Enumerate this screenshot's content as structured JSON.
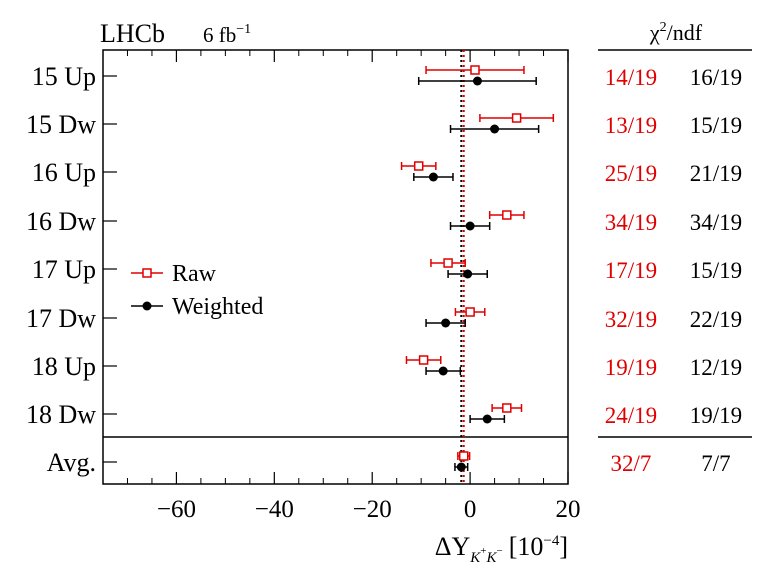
{
  "chart_data": {
    "type": "scatter",
    "subtype": "horizontal error-bar comparison",
    "experiment_label": "LHCb",
    "luminosity": {
      "value": "6 fb",
      "exponent": "−1"
    },
    "xlabel": {
      "prefix": "ΔY",
      "sub1": "K",
      "sup1": "+",
      "sub2": "K",
      "sup2": "−",
      "unit": "[10",
      "unit_exp": "−4",
      "unit_close": "]"
    },
    "xlim": [
      -75,
      20
    ],
    "xticks": [
      -60,
      -40,
      -20,
      0,
      20
    ],
    "xtick_labels": [
      "−60",
      "−40",
      "−20",
      "0",
      "20"
    ],
    "chi2_header": {
      "chi": "χ",
      "sup": "2",
      "rest": "/ndf"
    },
    "reference_lines": {
      "raw": -1.3,
      "weighted": -1.8
    },
    "legend": [
      {
        "name": "Raw",
        "color": "#e00000",
        "marker": "open-square"
      },
      {
        "name": "Weighted",
        "color": "#000000",
        "marker": "filled-circle"
      }
    ],
    "categories": [
      "15 Up",
      "15 Dw",
      "16 Up",
      "16 Dw",
      "17 Up",
      "17 Dw",
      "18 Up",
      "18 Dw",
      "Avg."
    ],
    "series": [
      {
        "name": "Raw",
        "color": "#e00000",
        "values": [
          1.0,
          9.5,
          -10.5,
          7.5,
          -4.5,
          0.0,
          -9.5,
          7.5,
          -1.3
        ],
        "errors": [
          10.0,
          7.5,
          3.5,
          3.5,
          3.5,
          3.0,
          3.5,
          3.0,
          1.2
        ],
        "chi2ndf": [
          "14/19",
          "13/19",
          "25/19",
          "34/19",
          "17/19",
          "32/19",
          "19/19",
          "24/19",
          "32/7"
        ]
      },
      {
        "name": "Weighted",
        "color": "#000000",
        "values": [
          1.5,
          5.0,
          -7.5,
          0.0,
          -0.5,
          -5.0,
          -5.5,
          3.5,
          -1.8
        ],
        "errors": [
          12.0,
          9.0,
          4.0,
          4.0,
          4.0,
          4.0,
          3.5,
          3.5,
          1.3
        ],
        "chi2ndf": [
          "16/19",
          "15/19",
          "21/19",
          "34/19",
          "15/19",
          "22/19",
          "12/19",
          "19/19",
          "7/7"
        ]
      }
    ]
  }
}
